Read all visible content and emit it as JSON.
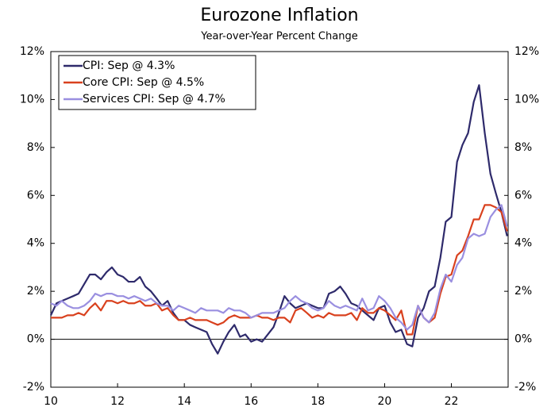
{
  "chart_data": {
    "type": "line",
    "title": "Eurozone Inflation",
    "subtitle": "Year-over-Year Percent Change",
    "x": [
      10,
      10.17,
      10.33,
      10.5,
      10.67,
      10.83,
      11,
      11.17,
      11.33,
      11.5,
      11.67,
      11.83,
      12,
      12.17,
      12.33,
      12.5,
      12.67,
      12.83,
      13,
      13.17,
      13.33,
      13.5,
      13.67,
      13.83,
      14,
      14.17,
      14.33,
      14.5,
      14.67,
      14.83,
      15,
      15.17,
      15.33,
      15.5,
      15.67,
      15.83,
      16,
      16.17,
      16.33,
      16.5,
      16.67,
      16.83,
      17,
      17.17,
      17.33,
      17.5,
      17.67,
      17.83,
      18,
      18.17,
      18.33,
      18.5,
      18.67,
      18.83,
      19,
      19.17,
      19.33,
      19.5,
      19.67,
      19.83,
      20,
      20.17,
      20.33,
      20.5,
      20.67,
      20.83,
      21,
      21.17,
      21.33,
      21.5,
      21.67,
      21.83,
      22,
      22.17,
      22.33,
      22.5,
      22.67,
      22.83,
      23,
      23.17,
      23.33,
      23.5,
      23.67
    ],
    "series": [
      {
        "name": "CPI: Sep @ 4.3%",
        "color": "#2e2a6b",
        "values": [
          1.0,
          1.5,
          1.6,
          1.7,
          1.8,
          1.9,
          2.3,
          2.7,
          2.7,
          2.5,
          2.8,
          3.0,
          2.7,
          2.6,
          2.4,
          2.4,
          2.6,
          2.2,
          2.0,
          1.7,
          1.4,
          1.6,
          1.1,
          0.8,
          0.8,
          0.6,
          0.5,
          0.4,
          0.3,
          -0.2,
          -0.6,
          -0.1,
          0.3,
          0.6,
          0.1,
          0.2,
          -0.1,
          0.0,
          -0.1,
          0.2,
          0.5,
          1.1,
          1.8,
          1.5,
          1.3,
          1.4,
          1.5,
          1.4,
          1.3,
          1.3,
          1.9,
          2.0,
          2.2,
          1.9,
          1.5,
          1.4,
          1.2,
          1.0,
          0.8,
          1.3,
          1.4,
          0.7,
          0.3,
          0.4,
          -0.2,
          -0.3,
          0.9,
          1.3,
          2.0,
          2.2,
          3.4,
          4.9,
          5.1,
          7.4,
          8.1,
          8.6,
          9.9,
          10.6,
          8.6,
          6.9,
          6.1,
          5.3,
          4.3
        ]
      },
      {
        "name": "Core CPI: Sep @ 4.5%",
        "color": "#d9411e",
        "values": [
          0.9,
          0.9,
          0.9,
          1.0,
          1.0,
          1.1,
          1.0,
          1.3,
          1.5,
          1.2,
          1.6,
          1.6,
          1.5,
          1.6,
          1.5,
          1.5,
          1.6,
          1.4,
          1.4,
          1.5,
          1.2,
          1.3,
          1.0,
          0.8,
          0.8,
          0.9,
          0.8,
          0.8,
          0.8,
          0.7,
          0.6,
          0.7,
          0.9,
          1.0,
          0.9,
          0.9,
          0.9,
          1.0,
          0.9,
          0.9,
          0.8,
          0.9,
          0.9,
          0.7,
          1.2,
          1.3,
          1.1,
          0.9,
          1.0,
          0.9,
          1.1,
          1.0,
          1.0,
          1.0,
          1.1,
          0.8,
          1.3,
          1.1,
          1.1,
          1.3,
          1.2,
          1.0,
          0.8,
          1.2,
          0.2,
          0.2,
          1.4,
          0.9,
          0.7,
          0.9,
          1.9,
          2.6,
          2.7,
          3.5,
          3.7,
          4.3,
          5.0,
          5.0,
          5.6,
          5.6,
          5.5,
          5.3,
          4.5
        ]
      },
      {
        "name": "Services CPI: Sep @ 4.7%",
        "color": "#9a8fe0",
        "values": [
          1.5,
          1.4,
          1.6,
          1.4,
          1.3,
          1.3,
          1.4,
          1.6,
          1.9,
          1.8,
          1.9,
          1.9,
          1.8,
          1.8,
          1.7,
          1.8,
          1.7,
          1.6,
          1.7,
          1.5,
          1.4,
          1.4,
          1.2,
          1.4,
          1.3,
          1.2,
          1.1,
          1.3,
          1.2,
          1.2,
          1.2,
          1.1,
          1.3,
          1.2,
          1.2,
          1.1,
          0.9,
          1.0,
          1.1,
          1.1,
          1.1,
          1.2,
          1.3,
          1.6,
          1.8,
          1.6,
          1.5,
          1.3,
          1.2,
          1.3,
          1.6,
          1.4,
          1.3,
          1.4,
          1.3,
          1.2,
          1.7,
          1.2,
          1.3,
          1.8,
          1.6,
          1.3,
          0.9,
          0.7,
          0.4,
          0.6,
          1.4,
          0.9,
          0.7,
          1.1,
          2.1,
          2.7,
          2.4,
          3.1,
          3.4,
          4.2,
          4.4,
          4.3,
          4.4,
          5.1,
          5.4,
          5.6,
          4.7
        ]
      }
    ],
    "xlim": [
      10,
      23.7
    ],
    "xticks": [
      10,
      12,
      14,
      16,
      18,
      20,
      22
    ],
    "ylim": [
      -2,
      12
    ],
    "yticks": [
      {
        "value": -2,
        "label": "-2%"
      },
      {
        "value": 0,
        "label": "0%"
      },
      {
        "value": 2,
        "label": "2%"
      },
      {
        "value": 4,
        "label": "4%"
      },
      {
        "value": 6,
        "label": "6%"
      },
      {
        "value": 8,
        "label": "8%"
      },
      {
        "value": 10,
        "label": "10%"
      },
      {
        "value": 12,
        "label": "12%"
      }
    ],
    "y2lim": [
      -2,
      12
    ],
    "y2ticks": [
      {
        "value": -2,
        "label": "-2%"
      },
      {
        "value": 0,
        "label": "0%"
      },
      {
        "value": 2,
        "label": "2%"
      },
      {
        "value": 4,
        "label": "4%"
      },
      {
        "value": 6,
        "label": "6%"
      },
      {
        "value": 8,
        "label": "8%"
      },
      {
        "value": 10,
        "label": "10%"
      },
      {
        "value": 12,
        "label": "12%"
      }
    ],
    "zero_line": true,
    "legend": "upper left"
  }
}
